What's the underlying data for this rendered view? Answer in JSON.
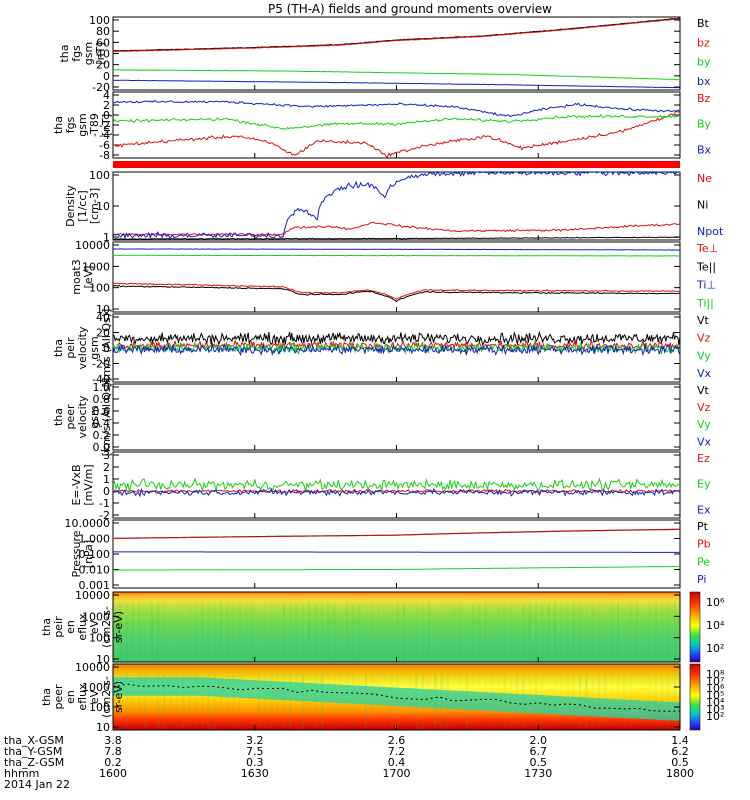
{
  "title": "P5 (TH-A) fields and ground moments overview",
  "colors": {
    "black": "#000000",
    "red": "#e01010",
    "green": "#16d016",
    "blue": "#1020c8"
  },
  "chart_data": [
    {
      "type": "line",
      "ylabel": [
        "tha",
        "fgs",
        "gsm",
        "[nT]"
      ],
      "yticks": [
        "100",
        "80",
        "60",
        "40",
        "20",
        "0",
        "-20"
      ],
      "ylim": [
        -22,
        105
      ],
      "series": [
        {
          "name": "Bt",
          "color": "black",
          "values": [
            [
              0,
              46
            ],
            [
              0.25,
              52
            ],
            [
              0.4,
              57
            ],
            [
              0.5,
              65
            ],
            [
              0.65,
              72
            ],
            [
              0.8,
              84
            ],
            [
              1,
              103
            ]
          ],
          "noise": 0.8
        },
        {
          "name": "bz",
          "color": "red",
          "values": [
            [
              0,
              45
            ],
            [
              0.25,
              51
            ],
            [
              0.4,
              56
            ],
            [
              0.5,
              64
            ],
            [
              0.65,
              71
            ],
            [
              0.8,
              83
            ],
            [
              1,
              102
            ]
          ],
          "noise": 0.6
        },
        {
          "name": "by",
          "color": "green",
          "values": [
            [
              0,
              13
            ],
            [
              0.3,
              11
            ],
            [
              0.5,
              8
            ],
            [
              0.7,
              5
            ],
            [
              1,
              -4
            ]
          ],
          "noise": 0.4
        },
        {
          "name": "bx",
          "color": "blue",
          "values": [
            [
              0,
              -5
            ],
            [
              0.4,
              -9
            ],
            [
              0.7,
              -13
            ],
            [
              1,
              -18
            ]
          ],
          "noise": 0.4
        }
      ]
    },
    {
      "type": "line",
      "ylabel": [
        "tha",
        "fgs",
        "gsm",
        "-T89",
        "[nT]"
      ],
      "yticks": [
        "4",
        "2",
        "0",
        "-2",
        "-4",
        "-6",
        "-8"
      ],
      "ylim": [
        -9,
        4.5
      ],
      "series": [
        {
          "name": "Bz",
          "color": "red",
          "values": [
            [
              0,
              -6.5
            ],
            [
              0.1,
              -5.5
            ],
            [
              0.22,
              -4.5
            ],
            [
              0.28,
              -6
            ],
            [
              0.32,
              -8.5
            ],
            [
              0.36,
              -5.5
            ],
            [
              0.45,
              -6
            ],
            [
              0.48,
              -8.5
            ],
            [
              0.55,
              -6.5
            ],
            [
              0.66,
              -4.5
            ],
            [
              0.72,
              -7
            ],
            [
              0.8,
              -5.5
            ],
            [
              0.9,
              -3.5
            ],
            [
              1,
              0.5
            ]
          ],
          "noise": 0.5
        },
        {
          "name": "By",
          "color": "green",
          "values": [
            [
              0,
              -1.5
            ],
            [
              0.2,
              -1
            ],
            [
              0.3,
              -3
            ],
            [
              0.4,
              -2
            ],
            [
              0.5,
              -2
            ],
            [
              0.6,
              -1
            ],
            [
              0.7,
              -1.5
            ],
            [
              0.8,
              -0.5
            ],
            [
              1,
              -0.5
            ]
          ],
          "noise": 0.4
        },
        {
          "name": "Bx",
          "color": "blue",
          "values": [
            [
              0,
              2.5
            ],
            [
              0.2,
              2.5
            ],
            [
              0.35,
              1.5
            ],
            [
              0.5,
              2
            ],
            [
              0.6,
              1.5
            ],
            [
              0.7,
              -0.5
            ],
            [
              0.76,
              1
            ],
            [
              0.82,
              2
            ],
            [
              0.9,
              1
            ],
            [
              1,
              0.5
            ]
          ],
          "noise": 0.35
        }
      ]
    },
    {
      "type": "line",
      "ylabel": [
        "Density",
        "[1/cc]",
        "[cm-3]"
      ],
      "yticks": [
        "100",
        "10",
        "1"
      ],
      "yscale": "log",
      "ylim": [
        0.55,
        200
      ],
      "series": [
        {
          "name": "Ne",
          "color": "red",
          "values": [
            [
              0,
              0.9
            ],
            [
              0.3,
              0.9
            ],
            [
              0.32,
              1.6
            ],
            [
              0.38,
              1.8
            ],
            [
              0.42,
              1.4
            ],
            [
              0.46,
              2.5
            ],
            [
              0.52,
              1.7
            ],
            [
              0.6,
              1.2
            ],
            [
              0.8,
              1.3
            ],
            [
              1,
              2.2
            ]
          ],
          "noise": 0.06
        },
        {
          "name": "Ni",
          "color": "black",
          "values": [
            [
              0,
              0.6
            ],
            [
              0.5,
              0.62
            ],
            [
              1,
              0.7
            ]
          ],
          "noise": 0.02
        },
        {
          "name": "Npot",
          "color": "blue",
          "values": [
            [
              0,
              0.8
            ],
            [
              0.3,
              0.8
            ],
            [
              0.33,
              9
            ],
            [
              0.36,
              3
            ],
            [
              0.4,
              50
            ],
            [
              0.45,
              70
            ],
            [
              0.48,
              20
            ],
            [
              0.5,
              90
            ],
            [
              0.55,
              160
            ],
            [
              0.65,
              190
            ],
            [
              0.8,
              190
            ],
            [
              1,
              190
            ]
          ],
          "noise": 0.15
        }
      ]
    },
    {
      "type": "line",
      "ylabel": [
        "moat3",
        "[eV]"
      ],
      "yticks": [
        "10000",
        "1000",
        "100",
        "10"
      ],
      "yscale": "log",
      "ylim": [
        8,
        12000
      ],
      "series": [
        {
          "name": "Te⊥",
          "color": "red",
          "values": [
            [
              0,
              160
            ],
            [
              0.3,
              110
            ],
            [
              0.33,
              60
            ],
            [
              0.4,
              60
            ],
            [
              0.45,
              80
            ],
            [
              0.5,
              30
            ],
            [
              0.55,
              80
            ],
            [
              0.7,
              75
            ],
            [
              1,
              70
            ]
          ],
          "noise": 0.04
        },
        {
          "name": "Te||",
          "color": "black",
          "values": [
            [
              0,
              120
            ],
            [
              0.3,
              90
            ],
            [
              0.33,
              50
            ],
            [
              0.4,
              50
            ],
            [
              0.45,
              70
            ],
            [
              0.5,
              25
            ],
            [
              0.55,
              65
            ],
            [
              0.7,
              60
            ],
            [
              1,
              55
            ]
          ],
          "noise": 0.04
        },
        {
          "name": "Ti⊥",
          "color": "blue",
          "values": [
            [
              0,
              5800
            ],
            [
              0.5,
              5600
            ],
            [
              1,
              5200
            ]
          ],
          "noise": 0.01
        },
        {
          "name": "Ti||",
          "color": "green",
          "values": [
            [
              0,
              3000
            ],
            [
              0.5,
              2900
            ],
            [
              1,
              2800
            ]
          ],
          "noise": 0.01
        }
      ]
    },
    {
      "type": "line",
      "ylabel": [
        "tha",
        "peir",
        "velocity",
        "gsm",
        "[km/s (All Qs)]"
      ],
      "yticks": [
        "40",
        "20",
        "0",
        "-20",
        "-40"
      ],
      "ylim": [
        -42,
        42
      ],
      "series": [
        {
          "name": "Vt",
          "color": "black",
          "values": [
            [
              0,
              12
            ],
            [
              1,
              12
            ]
          ],
          "noise": 10
        },
        {
          "name": "Vz",
          "color": "red",
          "values": [
            [
              0,
              3
            ],
            [
              1,
              3
            ]
          ],
          "noise": 7
        },
        {
          "name": "Vy",
          "color": "green",
          "values": [
            [
              0,
              0
            ],
            [
              1,
              0
            ]
          ],
          "noise": 9
        },
        {
          "name": "Vx",
          "color": "blue",
          "values": [
            [
              0,
              -2
            ],
            [
              1,
              -2
            ]
          ],
          "noise": 8
        }
      ]
    },
    {
      "type": "line",
      "ylabel": [
        "tha",
        "peer",
        "velocity",
        "gsm",
        "[km/s (All Qs)]"
      ],
      "yticks": [
        "1.0",
        "0.8",
        "0.6",
        "0.4",
        "0.2",
        "0.0"
      ],
      "ylim": [
        0,
        1
      ],
      "series": [
        {
          "name": "Vt",
          "color": "black",
          "values": []
        },
        {
          "name": "Vz",
          "color": "red",
          "values": []
        },
        {
          "name": "Vy",
          "color": "green",
          "values": []
        },
        {
          "name": "Vx",
          "color": "blue",
          "values": []
        }
      ]
    },
    {
      "type": "line",
      "ylabel": [
        "E=-VxB",
        "[mV/m]"
      ],
      "yticks": [
        "3",
        "2",
        "1",
        "0",
        "-1",
        "-2"
      ],
      "ylim": [
        -2.2,
        3.2
      ],
      "series": [
        {
          "name": "Ez",
          "color": "red",
          "values": [
            [
              0,
              0
            ],
            [
              1,
              0
            ]
          ],
          "noise": 0.18
        },
        {
          "name": "Ey",
          "color": "green",
          "values": [
            [
              0,
              0.5
            ],
            [
              1,
              0.5
            ]
          ],
          "noise": 0.6
        },
        {
          "name": "Ex",
          "color": "blue",
          "values": [
            [
              0,
              -0.1
            ],
            [
              1,
              -0.1
            ]
          ],
          "noise": 0.35
        }
      ]
    },
    {
      "type": "line",
      "ylabel": [
        "Pressure",
        "[nPa]"
      ],
      "yticks": [
        "10.0000",
        "1.000",
        "0.100",
        "0.010",
        "0.001"
      ],
      "yscale": "log",
      "ylim": [
        0.0009,
        12
      ],
      "series": [
        {
          "name": "Pt",
          "color": "black",
          "values": [
            [
              0,
              0.92
            ],
            [
              0.5,
              1.45
            ],
            [
              1,
              3.3
            ]
          ],
          "noise": 0
        },
        {
          "name": "Pb",
          "color": "red",
          "values": [
            [
              0,
              0.9
            ],
            [
              0.5,
              1.42
            ],
            [
              1,
              3.2
            ]
          ],
          "noise": 0
        },
        {
          "name": "Pe",
          "color": "green",
          "values": [
            [
              0,
              0.011
            ],
            [
              0.5,
              0.012
            ],
            [
              1,
              0.018
            ]
          ],
          "noise": 0
        },
        {
          "name": "Pi",
          "color": "blue",
          "values": [
            [
              0,
              0.14
            ],
            [
              0.5,
              0.135
            ],
            [
              1,
              0.13
            ]
          ],
          "noise": 0
        }
      ]
    },
    {
      "type": "heatmap",
      "ylabel": [
        "tha",
        "peir",
        "en",
        "eflux",
        "eV",
        "(cm2-s-",
        "sr-eV)"
      ],
      "yticks": [
        "10000",
        "1000",
        "100",
        "10"
      ],
      "colorbar_ticks": [
        "10⁶",
        "10⁴",
        "10²"
      ]
    },
    {
      "type": "heatmap",
      "ylabel": [
        "tha",
        "peer",
        "en",
        "eflux",
        "eV",
        "(cm2-s-",
        "sr-eV)"
      ],
      "yticks": [
        "10000",
        "1000",
        "100",
        "10"
      ],
      "colorbar_ticks": [
        "10⁸",
        "10⁷",
        "10⁶",
        "10⁵",
        "10⁴",
        "10³",
        "10²"
      ]
    }
  ],
  "xaxis": {
    "labels": [
      "tha_X-GSM",
      "tha_Y-GSM",
      "tha_Z-GSM",
      "hhmm",
      "2014 Jan 22"
    ],
    "rows": [
      [
        "3.8",
        "3.2",
        "2.6",
        "2.0",
        "1.4"
      ],
      [
        "7.8",
        "7.5",
        "7.2",
        "6.7",
        "6.2"
      ],
      [
        "0.2",
        "0.3",
        "0.4",
        "0.5",
        "0.5"
      ],
      [
        "1600",
        "1630",
        "1700",
        "1730",
        "1800"
      ]
    ]
  }
}
